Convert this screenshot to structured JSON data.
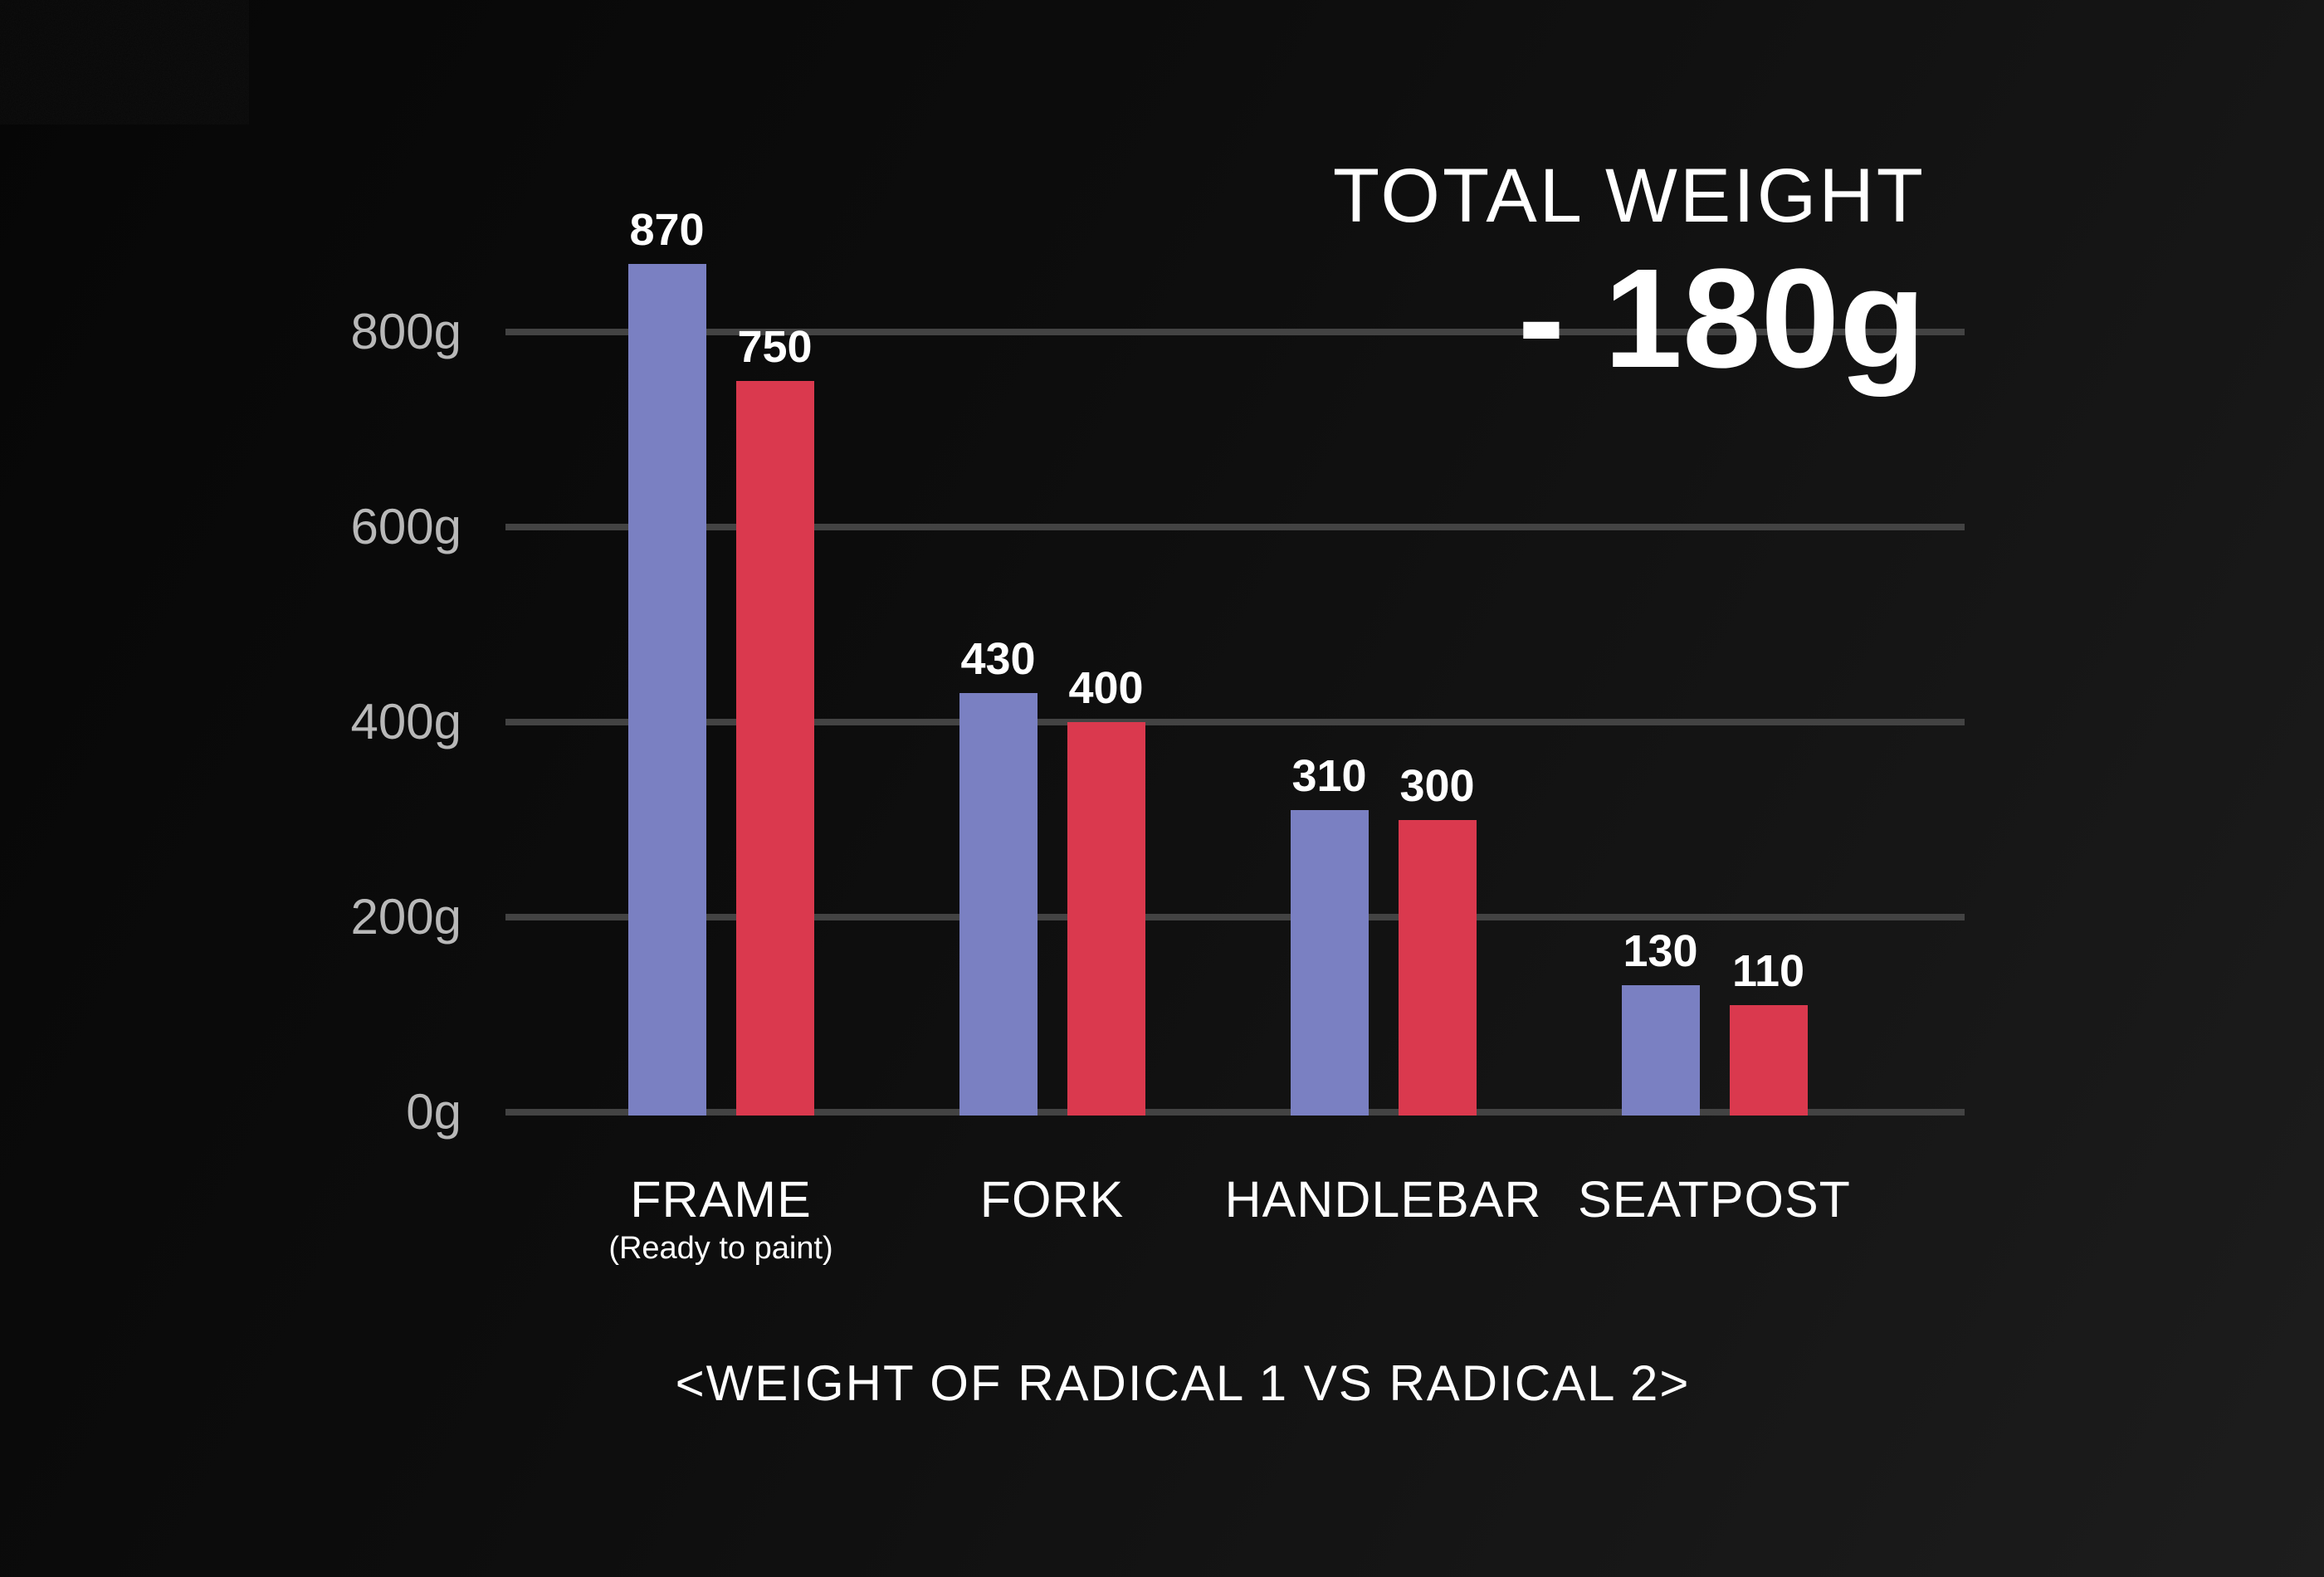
{
  "chart_data": {
    "type": "bar",
    "title": {
      "line1": "TOTAL WEIGHT",
      "line2": "- 180g"
    },
    "caption": "<WEIGHT OF RADICAL 1 VS RADICAL 2>",
    "categories": [
      "FRAME",
      "FORK",
      "HANDLEBAR",
      "SEATPOST"
    ],
    "category_sublabels": [
      "(Ready to paint)",
      "",
      "",
      ""
    ],
    "series": [
      {
        "name": "Radical 1",
        "color": "#7a80c2",
        "values": [
          870,
          430,
          310,
          130
        ]
      },
      {
        "name": "Radical 2",
        "color": "#da394e",
        "values": [
          750,
          400,
          300,
          110
        ]
      }
    ],
    "unit": "g",
    "y_ticks": [
      {
        "label": "800g",
        "value": 800
      },
      {
        "label": "600g",
        "value": 600
      },
      {
        "label": "400g",
        "value": 400
      },
      {
        "label": "200g",
        "value": 200
      },
      {
        "label": "0g",
        "value": 0
      }
    ],
    "ylim": [
      0,
      940
    ],
    "grid": true,
    "legend_position": "none",
    "xlabel": "",
    "ylabel": ""
  },
  "colors": {
    "background_top": "#060606",
    "background_bottom": "#1d1d1d",
    "gridline": "#434343",
    "tick_text": "#b8b8b8",
    "value_text": "#ffffff",
    "bar_series1": "#7a80c2",
    "bar_series2": "#da394e"
  }
}
